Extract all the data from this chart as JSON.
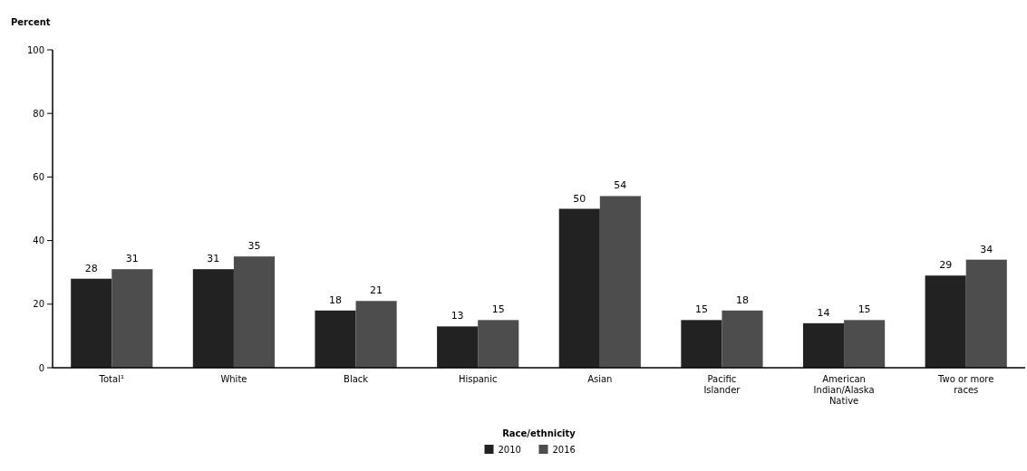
{
  "chart_data": {
    "type": "bar",
    "ylabel": "Percent",
    "xlabel": "Race/ethnicity",
    "categories": [
      "Total¹",
      "White",
      "Black",
      "Hispanic",
      "Asian",
      "Pacific Islander",
      "American Indian/Alaska Native",
      "Two or more races"
    ],
    "series": [
      {
        "name": "2010",
        "color": "#222222",
        "values": [
          28,
          31,
          18,
          13,
          50,
          15,
          14,
          29
        ]
      },
      {
        "name": "2016",
        "color": "#4d4d4d",
        "values": [
          31,
          35,
          21,
          15,
          54,
          18,
          15,
          34
        ]
      }
    ],
    "ylim": [
      0,
      100
    ],
    "yticks": [
      0,
      20,
      40,
      60,
      80,
      100
    ],
    "data_labels": true,
    "legend": "bottom",
    "grid": false
  }
}
